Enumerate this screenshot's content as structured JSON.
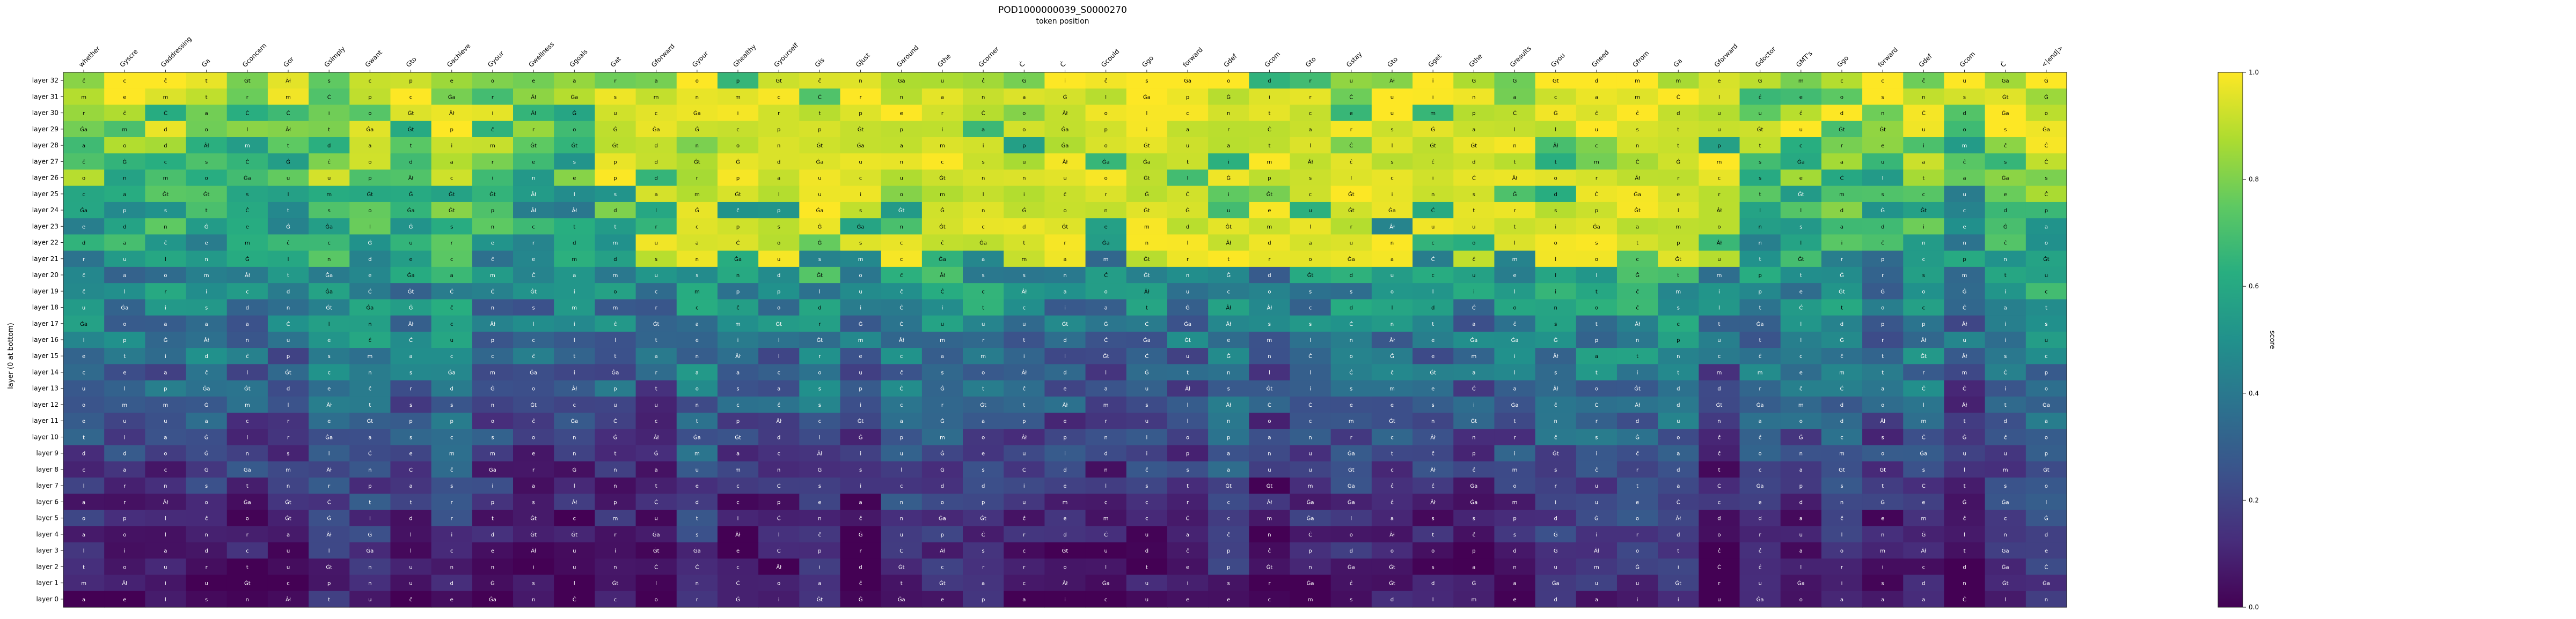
{
  "chart_data": {
    "type": "heatmap",
    "title": "POD1000000039_S0000270",
    "xlabel": "token position",
    "ylabel": "layer (0 at bottom)",
    "x_tick_labels": [
      "whether",
      "Gyscre",
      "Gaddressing",
      "Ga",
      "Gconcern",
      "Gor",
      "Gsimply",
      "Gwant",
      "Gto",
      "Gachieve",
      "Gyour",
      "Gwellness",
      "Ggoals",
      "Gat",
      "Gforward",
      "Gyour",
      "Ghealthy",
      "Gyourself",
      "Gis",
      "Gjust",
      "Garound",
      "Gthe",
      "Gcorner",
      "Ċ",
      "Ċ",
      "Gcould",
      "Ggo",
      "forward",
      "Gdef",
      "Gcom",
      "Gto",
      "Gstay",
      "Gto",
      "Gget",
      "Gthe",
      "Gresults",
      "Gyou",
      "Gneed",
      "Gfrom",
      "Ga",
      "Gforward",
      "Gdoctor",
      "GMT's",
      "Ggo",
      "forward",
      "Gdef",
      "Gcom",
      "Ċ",
      "<|end|>"
    ],
    "y_tick_labels": [
      "layer 32",
      "layer 31",
      "layer 30",
      "layer 29",
      "layer 28",
      "layer 27",
      "layer 26",
      "layer 25",
      "layer 24",
      "layer 23",
      "layer 22",
      "layer 21",
      "layer 20",
      "layer 19",
      "layer 18",
      "layer 17",
      "layer 16",
      "layer 15",
      "layer 14",
      "layer 13",
      "layer 12",
      "layer 11",
      "layer 10",
      "layer 9",
      "layer 8",
      "layer 7",
      "layer 6",
      "layer 5",
      "layer 4",
      "layer 3",
      "layer 2",
      "layer 1",
      "layer 0"
    ],
    "cell_text_tokens": [
      "ĉ",
      "Ġ",
      "Ċ",
      "a",
      "e",
      "o",
      "i",
      "t",
      "r",
      "s",
      "n",
      "l",
      "Âł",
      "Ġt",
      "Ġa",
      "c",
      "d",
      "m",
      "u",
      "p"
    ],
    "colorbar": {
      "label": "score",
      "range": [
        0.0,
        1.0
      ],
      "tick_labels": [
        "0.0",
        "0.2",
        "0.4",
        "0.6",
        "0.8",
        "1.0"
      ],
      "colormap": "viridis"
    },
    "value_range": [
      0.0,
      1.0
    ],
    "grid": false
  }
}
